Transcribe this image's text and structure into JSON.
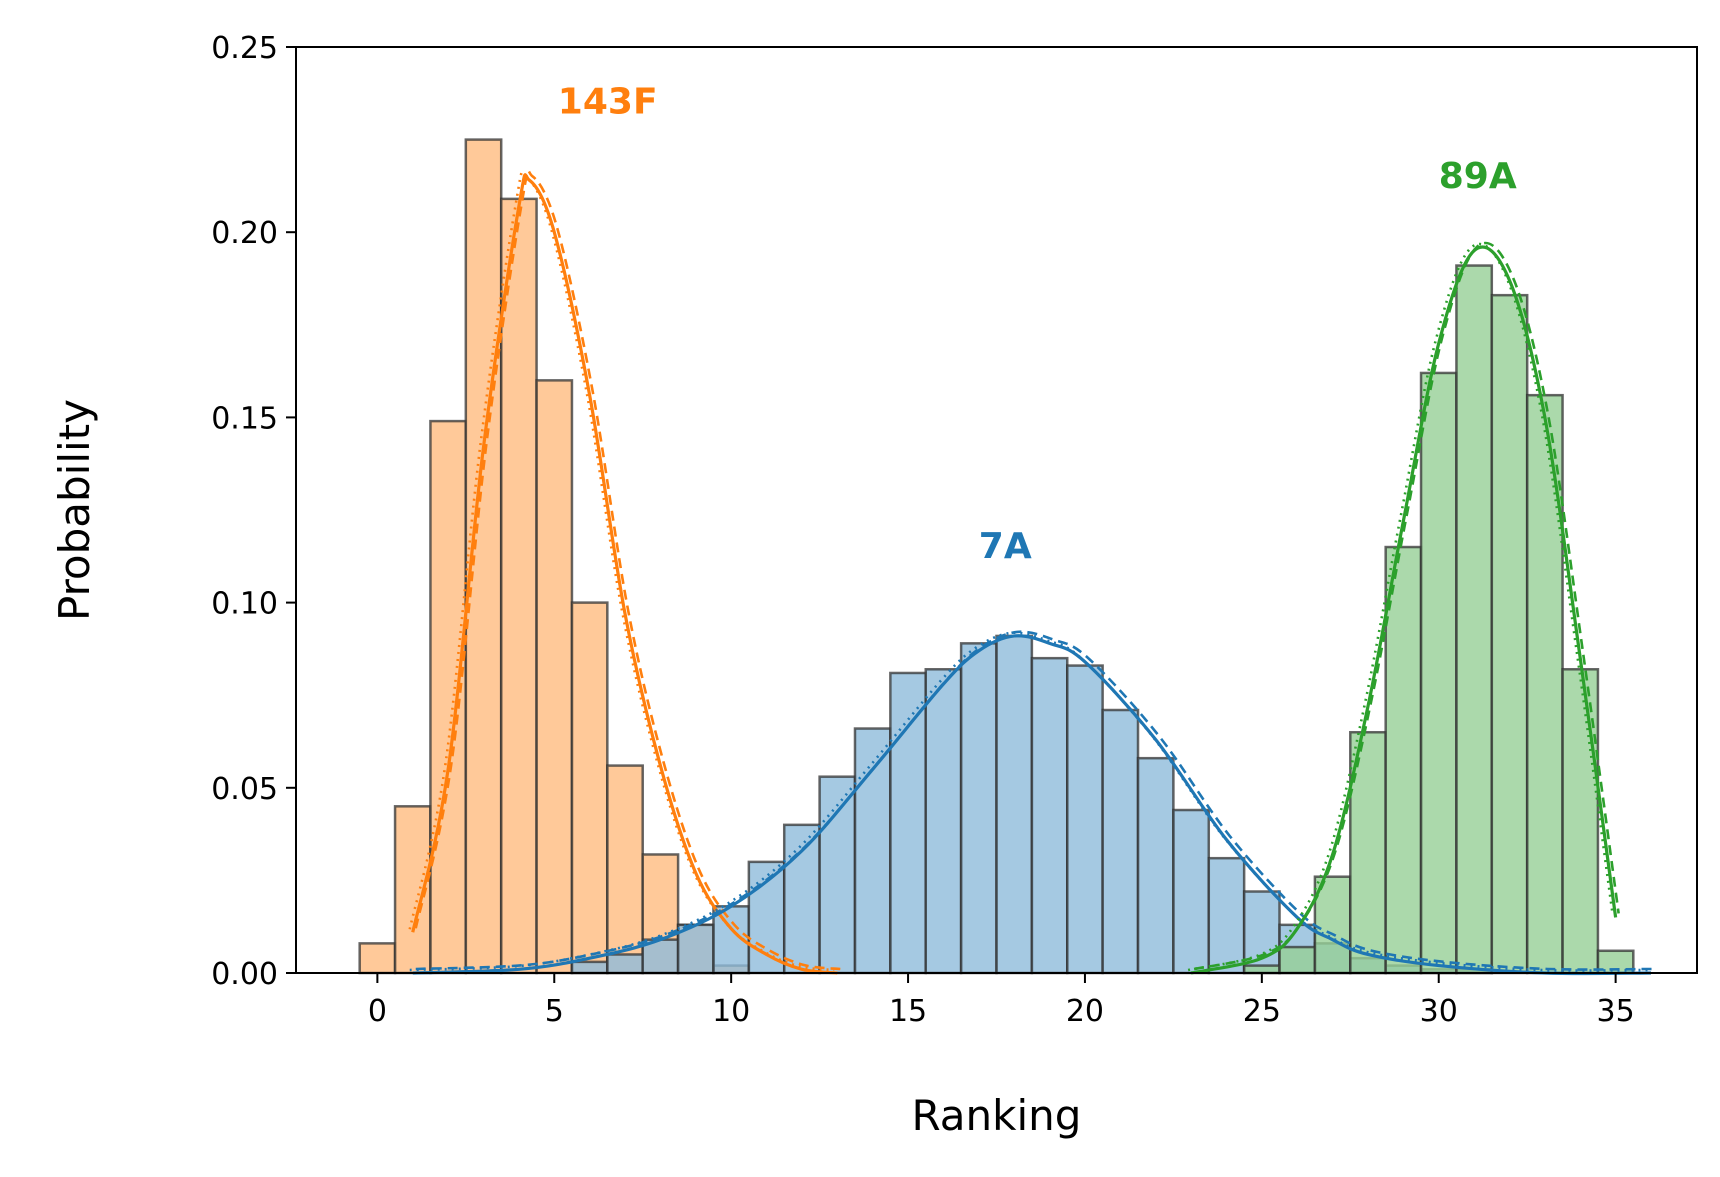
{
  "chart_data": {
    "type": "histogram",
    "xlabel": "Ranking",
    "ylabel": "Probability",
    "xlim": [
      -2.3,
      37.3
    ],
    "ylim": [
      0,
      0.25
    ],
    "xticks": [
      0,
      5,
      10,
      15,
      20,
      25,
      30,
      35
    ],
    "yticks": [
      0.0,
      0.05,
      0.1,
      0.15,
      0.2,
      0.25
    ],
    "xtick_labels": [
      "0",
      "5",
      "10",
      "15",
      "20",
      "25",
      "30",
      "35"
    ],
    "ytick_labels": [
      "0.00",
      "0.05",
      "0.10",
      "0.15",
      "0.20",
      "0.25"
    ],
    "grid": false,
    "bin_width": 1,
    "series": [
      {
        "name": "143F",
        "color": "#ff7f0e",
        "fill": "#ffbb80",
        "bins": [
          0,
          1,
          2,
          3,
          4,
          5,
          6,
          7,
          8,
          9,
          10
        ],
        "values": [
          0.008,
          0.045,
          0.149,
          0.225,
          0.209,
          0.16,
          0.1,
          0.056,
          0.032,
          0.013,
          0.002
        ],
        "kde_x": [
          1,
          2,
          3,
          4,
          4.3,
          5,
          6,
          7,
          8,
          9,
          10,
          11,
          12,
          13
        ],
        "kde_y": [
          0.011,
          0.055,
          0.142,
          0.207,
          0.214,
          0.2,
          0.156,
          0.097,
          0.056,
          0.027,
          0.012,
          0.005,
          0.001,
          0.0
        ]
      },
      {
        "name": "7A",
        "color": "#1f77b4",
        "fill": "#8fbbdb",
        "bins": [
          6,
          7,
          8,
          9,
          10,
          11,
          12,
          13,
          14,
          15,
          16,
          17,
          18,
          19,
          20,
          21,
          22,
          23,
          24,
          25,
          26,
          27,
          28,
          29,
          30,
          31
        ],
        "values": [
          0.003,
          0.005,
          0.009,
          0.013,
          0.018,
          0.03,
          0.04,
          0.053,
          0.066,
          0.081,
          0.082,
          0.089,
          0.091,
          0.085,
          0.083,
          0.071,
          0.058,
          0.044,
          0.031,
          0.022,
          0.013,
          0.008,
          0.004,
          0.002,
          0.001,
          0.001
        ],
        "kde_x": [
          1,
          4,
          6,
          8,
          10,
          12,
          14,
          16,
          17,
          18,
          19,
          20,
          22,
          24,
          26,
          27,
          28,
          30,
          33,
          36
        ],
        "kde_y": [
          0.0,
          0.001,
          0.004,
          0.009,
          0.018,
          0.033,
          0.055,
          0.078,
          0.087,
          0.091,
          0.089,
          0.084,
          0.063,
          0.036,
          0.015,
          0.009,
          0.005,
          0.002,
          0.0,
          0.0
        ]
      },
      {
        "name": "89A",
        "color": "#2ca02c",
        "fill": "#96d096",
        "bins": [
          25,
          26,
          27,
          28,
          29,
          30,
          31,
          32,
          33,
          34,
          35
        ],
        "values": [
          0.002,
          0.007,
          0.026,
          0.065,
          0.115,
          0.162,
          0.191,
          0.183,
          0.156,
          0.082,
          0.006
        ],
        "kde_x": [
          23,
          25,
          26,
          27,
          28,
          29,
          30,
          31,
          32,
          33,
          34,
          35
        ],
        "kde_y": [
          0.0,
          0.004,
          0.012,
          0.032,
          0.072,
          0.122,
          0.17,
          0.195,
          0.187,
          0.15,
          0.085,
          0.015
        ]
      }
    ],
    "annotations": [
      {
        "text": "143F",
        "x": 5.1,
        "y": 0.232,
        "color": "#ff7f0e"
      },
      {
        "text": "89A",
        "x": 30.0,
        "y": 0.212,
        "color": "#2ca02c"
      },
      {
        "text": "7A",
        "x": 17.0,
        "y": 0.112,
        "color": "#1f77b4"
      }
    ]
  }
}
